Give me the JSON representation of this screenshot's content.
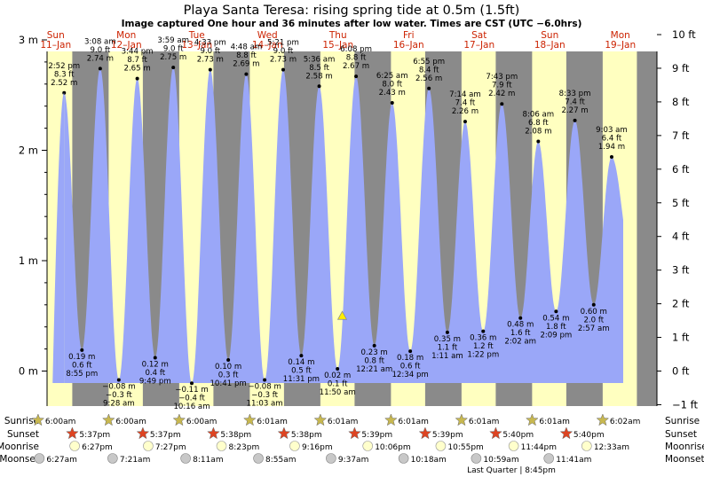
{
  "title": "Playa Santa Teresa: rising  spring tide at 0.5m (1.5ft)",
  "subtitle": "Image captured One hour and 36 minutes after low water. Times are CST (UTC −6.0hrs)",
  "days": [
    {
      "name": "Sun",
      "date": "11–Jan"
    },
    {
      "name": "Mon",
      "date": "12–Jan"
    },
    {
      "name": "Tue",
      "date": "13–Jan"
    },
    {
      "name": "Wed",
      "date": "14–Jan"
    },
    {
      "name": "Thu",
      "date": "15–Jan"
    },
    {
      "name": "Fri",
      "date": "16–Jan"
    },
    {
      "name": "Sat",
      "date": "17–Jan"
    },
    {
      "name": "Sun",
      "date": "18–Jan"
    },
    {
      "name": "Mon",
      "date": "19–Jan"
    }
  ],
  "chart_data": {
    "type": "area",
    "title": "Playa Santa Teresa: rising  spring tide at 0.5m (1.5ft)",
    "xlabel": "",
    "ylabel": "",
    "left_axis": {
      "unit": "m",
      "ticks": [
        "0 m",
        "1 m",
        "2 m",
        "3 m"
      ]
    },
    "right_axis": {
      "unit": "ft",
      "ticks": [
        "−1 ft",
        "0 ft",
        "1 ft",
        "2 ft",
        "3 ft",
        "4 ft",
        "5 ft",
        "6 ft",
        "7 ft",
        "8 ft",
        "9 ft",
        "10 ft"
      ]
    },
    "ylim_m": [
      -0.12,
      3.2
    ],
    "current": {
      "day": 4,
      "time": "13:26",
      "height_m": 0.5
    },
    "extremes": [
      {
        "day": 0,
        "time": "14:52",
        "m": 2.52,
        "lines": [
          "2:52 pm",
          "8.3 ft",
          "2.52 m"
        ]
      },
      {
        "day": 0,
        "time": "20:55",
        "m": 0.19,
        "lines": [
          "0.19 m",
          "0.6 ft",
          "8:55 pm"
        ]
      },
      {
        "day": 1,
        "time": "03:08",
        "m": 2.74,
        "lines": [
          "3:08 am",
          "9.0 ft",
          "2.74 m"
        ]
      },
      {
        "day": 1,
        "time": "09:28",
        "m": -0.08,
        "lines": [
          "−0.08 m",
          "−0.3 ft",
          "9:28 am"
        ]
      },
      {
        "day": 1,
        "time": "15:44",
        "m": 2.65,
        "lines": [
          "3:44 pm",
          "8.7 ft",
          "2.65 m"
        ]
      },
      {
        "day": 1,
        "time": "21:49",
        "m": 0.12,
        "lines": [
          "0.12 m",
          "0.4 ft",
          "9:49 pm"
        ]
      },
      {
        "day": 2,
        "time": "03:59",
        "m": 2.75,
        "lines": [
          "3:59 am",
          "9.0 ft",
          "2.75 m"
        ]
      },
      {
        "day": 2,
        "time": "10:16",
        "m": -0.11,
        "lines": [
          "−0.11 m",
          "−0.4 ft",
          "10:16 am"
        ]
      },
      {
        "day": 2,
        "time": "16:33",
        "m": 2.73,
        "lines": [
          "4:33 pm",
          "9.0 ft",
          "2.73 m"
        ]
      },
      {
        "day": 2,
        "time": "22:41",
        "m": 0.1,
        "lines": [
          "0.10 m",
          "0.3 ft",
          "10:41 pm"
        ]
      },
      {
        "day": 3,
        "time": "04:48",
        "m": 2.69,
        "lines": [
          "4:48 am",
          "8.8 ft",
          "2.69 m"
        ]
      },
      {
        "day": 3,
        "time": "11:03",
        "m": -0.08,
        "lines": [
          "−0.08 m",
          "−0.3 ft",
          "11:03 am"
        ]
      },
      {
        "day": 3,
        "time": "17:21",
        "m": 2.73,
        "lines": [
          "5:21 pm",
          "9.0 ft",
          "2.73 m"
        ]
      },
      {
        "day": 3,
        "time": "23:31",
        "m": 0.14,
        "lines": [
          "0.14 m",
          "0.5 ft",
          "11:31 pm"
        ]
      },
      {
        "day": 4,
        "time": "05:36",
        "m": 2.58,
        "lines": [
          "5:36 am",
          "8.5 ft",
          "2.58 m"
        ]
      },
      {
        "day": 4,
        "time": "11:50",
        "m": 0.02,
        "lines": [
          "0.02 m",
          "0.1 ft",
          "11:50 am"
        ]
      },
      {
        "day": 4,
        "time": "18:08",
        "m": 2.67,
        "lines": [
          "6:08 pm",
          "8.8 ft",
          "2.67 m"
        ]
      },
      {
        "day": 5,
        "time": "00:21",
        "m": 0.23,
        "lines": [
          "0.23 m",
          "0.8 ft",
          "12:21 am"
        ]
      },
      {
        "day": 5,
        "time": "06:25",
        "m": 2.43,
        "lines": [
          "6:25 am",
          "8.0 ft",
          "2.43 m"
        ]
      },
      {
        "day": 5,
        "time": "12:34",
        "m": 0.18,
        "lines": [
          "0.18 m",
          "0.6 ft",
          "12:34 pm"
        ]
      },
      {
        "day": 5,
        "time": "18:55",
        "m": 2.56,
        "lines": [
          "6:55 pm",
          "8.4 ft",
          "2.56 m"
        ]
      },
      {
        "day": 6,
        "time": "01:11",
        "m": 0.35,
        "lines": [
          "0.35 m",
          "1.1 ft",
          "1:11 am"
        ]
      },
      {
        "day": 6,
        "time": "07:14",
        "m": 2.26,
        "lines": [
          "7:14 am",
          "7.4 ft",
          "2.26 m"
        ]
      },
      {
        "day": 6,
        "time": "13:22",
        "m": 0.36,
        "lines": [
          "0.36 m",
          "1.2 ft",
          "1:22 pm"
        ]
      },
      {
        "day": 6,
        "time": "19:43",
        "m": 2.42,
        "lines": [
          "7:43 pm",
          "7.9 ft",
          "2.42 m"
        ]
      },
      {
        "day": 7,
        "time": "02:02",
        "m": 0.48,
        "lines": [
          "0.48 m",
          "1.6 ft",
          "2:02 am"
        ]
      },
      {
        "day": 7,
        "time": "08:06",
        "m": 2.08,
        "lines": [
          "8:06 am",
          "6.8 ft",
          "2.08 m"
        ]
      },
      {
        "day": 7,
        "time": "14:09",
        "m": 0.54,
        "lines": [
          "0.54 m",
          "1.8 ft",
          "2:09 pm"
        ]
      },
      {
        "day": 7,
        "time": "20:33",
        "m": 2.27,
        "lines": [
          "8:33 pm",
          "7.4 ft",
          "2.27 m"
        ]
      },
      {
        "day": 8,
        "time": "02:57",
        "m": 0.6,
        "lines": [
          "0.60 m",
          "2.0 ft",
          "2:57 am"
        ]
      },
      {
        "day": 8,
        "time": "09:03",
        "m": 1.94,
        "lines": [
          "9:03 am",
          "6.4 ft",
          "1.94 m"
        ]
      }
    ]
  },
  "colors": {
    "water": "#9aa7f8",
    "day": "#ffffc0",
    "night": "#8a8a8a",
    "sunset_star": "#dd4422",
    "sunrise_star": "#c8b850",
    "moonrise": "#ffffcc",
    "moonset": "#c8c8c8",
    "marker": "#ffee00"
  },
  "rows": {
    "sunrise_label": "Sunrise",
    "sunset_label": "Sunset",
    "moonrise_label": "Moonrise",
    "moonset_label": "Moonset",
    "sunrise": [
      "6:00am",
      "6:00am",
      "6:00am",
      "6:01am",
      "6:01am",
      "6:01am",
      "6:01am",
      "6:01am",
      "6:02am"
    ],
    "sunset": [
      "5:37pm",
      "5:37pm",
      "5:38pm",
      "5:38pm",
      "5:39pm",
      "5:39pm",
      "5:40pm",
      "5:40pm"
    ],
    "moonrise": [
      "6:27pm",
      "7:27pm",
      "8:23pm",
      "9:16pm",
      "10:06pm",
      "10:55pm",
      "11:44pm",
      "12:33am"
    ],
    "moonset": [
      "6:27am",
      "7:21am",
      "8:11am",
      "8:55am",
      "9:37am",
      "10:18am",
      "10:59am",
      "11:41am"
    ],
    "quarter": "Last Quarter | 8:45pm"
  }
}
